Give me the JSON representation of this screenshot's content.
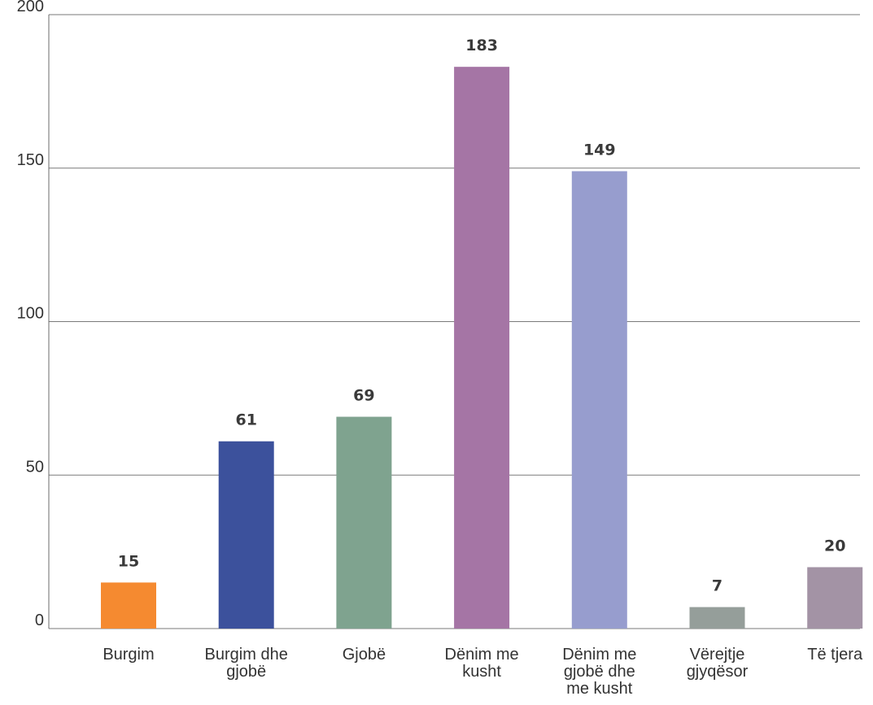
{
  "chart_data": {
    "type": "bar",
    "title": "",
    "xlabel": "",
    "ylabel": "",
    "ylim": [
      0,
      200
    ],
    "yticks": [
      0,
      50,
      100,
      150,
      200
    ],
    "grid": true,
    "categories": [
      [
        "Burgim"
      ],
      [
        "Burgim dhe",
        "gjobë"
      ],
      [
        "Gjobë"
      ],
      [
        "Dënim me",
        "kusht"
      ],
      [
        "Dënim me",
        "gjobë dhe",
        "me kusht"
      ],
      [
        "Vërejtje",
        "gjyqësor"
      ],
      [
        "Të tjera"
      ]
    ],
    "values": [
      15,
      61,
      69,
      183,
      149,
      7,
      20
    ],
    "colors": [
      "#f58a30",
      "#3c519c",
      "#7fa38f",
      "#a575a5",
      "#979dce",
      "#959e9a",
      "#a393a5"
    ]
  }
}
